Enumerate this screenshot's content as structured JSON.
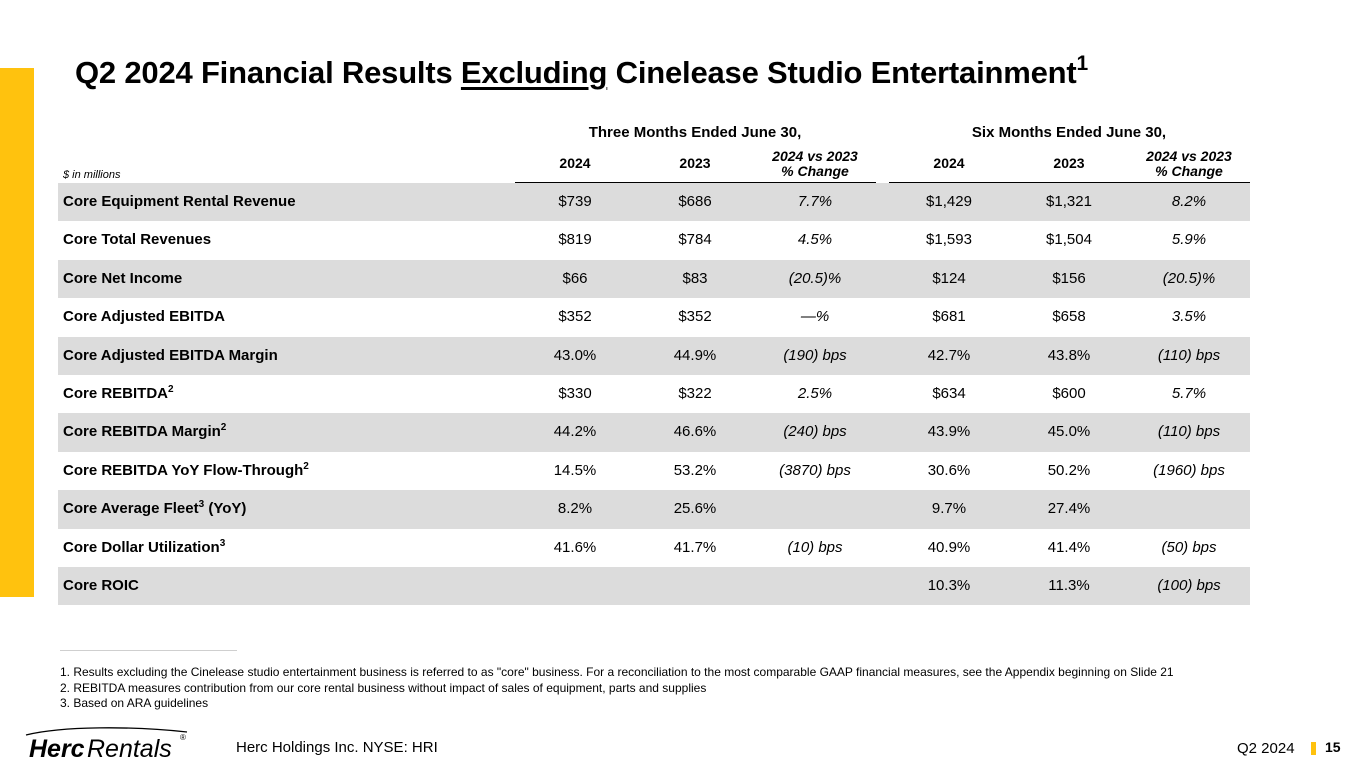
{
  "title": {
    "part1": "Q2 2024 Financial Results ",
    "part2": "Excluding",
    "part3": " Cinelease Studio Entertainment",
    "sup": "1"
  },
  "table": {
    "unit_note": "$ in millions",
    "group_headers": [
      "Three Months Ended June 30,",
      "Six Months Ended June 30,"
    ],
    "column_headers": [
      {
        "line1": "2024",
        "line2": ""
      },
      {
        "line1": "2023",
        "line2": ""
      },
      {
        "line1": "2024 vs 2023",
        "line2": "% Change"
      },
      {
        "line1": "2024",
        "line2": ""
      },
      {
        "line1": "2023",
        "line2": ""
      },
      {
        "line1": "2024 vs 2023",
        "line2": "% Change"
      }
    ],
    "rows": [
      {
        "label": "Core Equipment Rental Revenue",
        "sup": "",
        "label_suffix": "",
        "values": [
          "$739",
          "$686",
          "7.7%",
          "$1,429",
          "$1,321",
          "8.2%"
        ]
      },
      {
        "label": "Core Total Revenues",
        "sup": "",
        "label_suffix": "",
        "values": [
          "$819",
          "$784",
          "4.5%",
          "$1,593",
          "$1,504",
          "5.9%"
        ]
      },
      {
        "label": "Core Net Income",
        "sup": "",
        "label_suffix": "",
        "values": [
          "$66",
          "$83",
          "(20.5)%",
          "$124",
          "$156",
          "(20.5)%"
        ]
      },
      {
        "label": "Core Adjusted EBITDA",
        "sup": "",
        "label_suffix": "",
        "values": [
          "$352",
          "$352",
          "—%",
          "$681",
          "$658",
          "3.5%"
        ]
      },
      {
        "label": "Core Adjusted EBITDA Margin",
        "sup": "",
        "label_suffix": "",
        "values": [
          "43.0%",
          "44.9%",
          "(190) bps",
          "42.7%",
          "43.8%",
          "(110) bps"
        ]
      },
      {
        "label": "Core REBITDA",
        "sup": "2",
        "label_suffix": "",
        "values": [
          "$330",
          "$322",
          "2.5%",
          "$634",
          "$600",
          "5.7%"
        ]
      },
      {
        "label": "Core REBITDA Margin",
        "sup": "2",
        "label_suffix": "",
        "values": [
          "44.2%",
          "46.6%",
          "(240) bps",
          "43.9%",
          "45.0%",
          "(110) bps"
        ]
      },
      {
        "label": "Core REBITDA YoY Flow-Through",
        "sup": "2",
        "label_suffix": "",
        "values": [
          "14.5%",
          "53.2%",
          "(3870) bps",
          "30.6%",
          "50.2%",
          "(1960) bps"
        ]
      },
      {
        "label": "Core Average Fleet",
        "sup": "3",
        "label_suffix": " (YoY)",
        "values": [
          "8.2%",
          "25.6%",
          "",
          "9.7%",
          "27.4%",
          ""
        ]
      },
      {
        "label": "Core Dollar Utilization",
        "sup": "3",
        "label_suffix": "",
        "values": [
          "41.6%",
          "41.7%",
          "(10) bps",
          "40.9%",
          "41.4%",
          "(50) bps"
        ]
      },
      {
        "label": "Core ROIC",
        "sup": "",
        "label_suffix": "",
        "values": [
          "",
          "",
          "",
          "10.3%",
          "11.3%",
          "(100) bps"
        ]
      }
    ]
  },
  "footnotes": [
    "1. Results excluding the Cinelease studio entertainment business is referred to as \"core\" business. For a reconciliation to the most comparable GAAP financial measures, see the Appendix beginning on Slide 21",
    "2. REBITDA measures contribution from our core rental business without impact of sales of equipment, parts and supplies",
    "3. Based on ARA guidelines"
  ],
  "footer": {
    "logo_text_1": "Herc",
    "logo_text_2": "Rentals",
    "logo_mark": "®",
    "company": "Herc Holdings Inc.  NYSE: HRI",
    "period": "Q2 2024",
    "page": "15"
  },
  "colors": {
    "accent_yellow": "#FFC20E",
    "row_shade": "#DCDCDC",
    "text": "#000000"
  }
}
